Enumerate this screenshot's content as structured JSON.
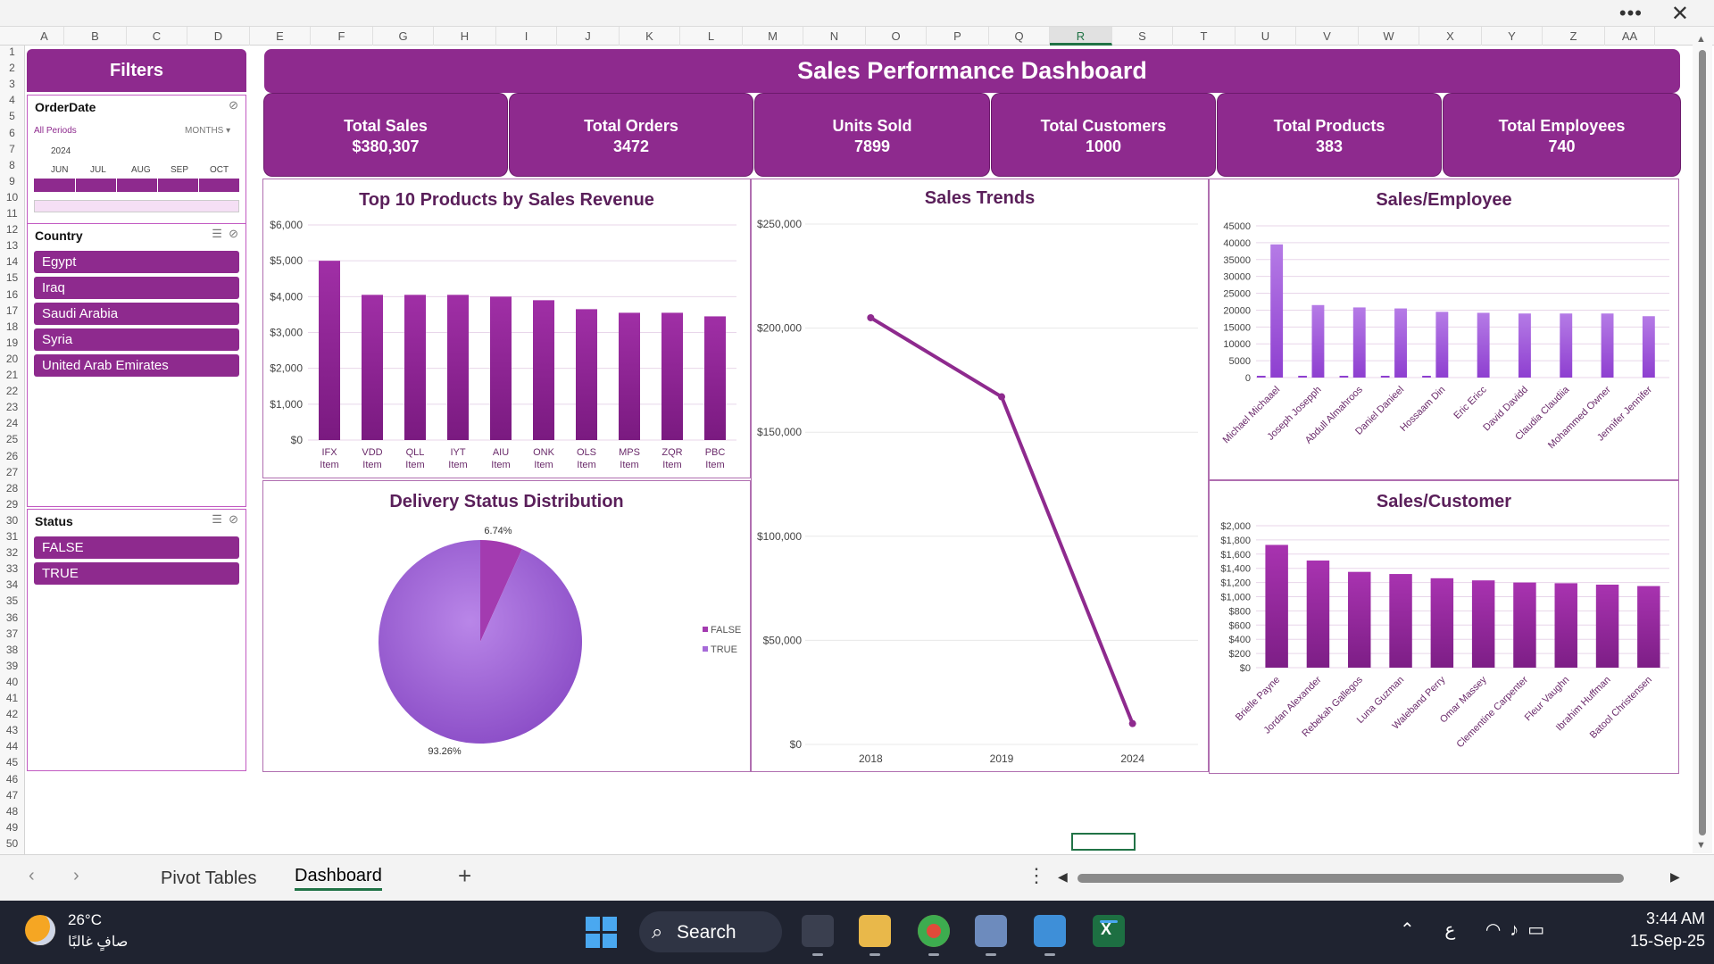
{
  "window": {
    "more_label": "•••",
    "close_label": "✕"
  },
  "columns": [
    "A",
    "B",
    "C",
    "D",
    "E",
    "F",
    "G",
    "H",
    "I",
    "J",
    "K",
    "L",
    "M",
    "N",
    "O",
    "P",
    "Q",
    "R",
    "S",
    "T",
    "U",
    "V",
    "W",
    "X",
    "Y",
    "Z",
    "AA"
  ],
  "selected_column": "R",
  "rows": [
    "1",
    "2",
    "3",
    "4",
    "5",
    "6",
    "7",
    "8",
    "9",
    "10",
    "11",
    "12",
    "13",
    "14",
    "15",
    "16",
    "17",
    "18",
    "19",
    "20",
    "21",
    "22",
    "23",
    "24",
    "25",
    "26",
    "27",
    "28",
    "29",
    "30",
    "31",
    "32",
    "33",
    "34",
    "35",
    "36",
    "37",
    "38",
    "39",
    "40",
    "41",
    "42",
    "43",
    "44",
    "45",
    "46",
    "47",
    "48",
    "49",
    "50"
  ],
  "filters": {
    "title": "Filters",
    "orderdate": {
      "title": "OrderDate",
      "all_periods": "All Periods",
      "months": "MONTHS ▾",
      "year": "2024",
      "month_labels": [
        "JUN",
        "JUL",
        "AUG",
        "SEP",
        "OCT"
      ]
    },
    "country": {
      "title": "Country",
      "items": [
        "Egypt",
        "Iraq",
        "Saudi Arabia",
        "Syria",
        "United Arab Emirates"
      ]
    },
    "status": {
      "title": "Status",
      "items": [
        "FALSE",
        "TRUE"
      ]
    }
  },
  "dashboard": {
    "title": "Sales Performance Dashboard",
    "kpis": [
      {
        "label": "Total Sales",
        "value": "$380,307"
      },
      {
        "label": "Total Orders",
        "value": "3472"
      },
      {
        "label": "Units Sold",
        "value": "7899"
      },
      {
        "label": "Total Customers",
        "value": "1000"
      },
      {
        "label": "Total Products",
        "value": "383"
      },
      {
        "label": "Total Employees",
        "value": "740"
      }
    ]
  },
  "colors": {
    "accent": "#8e2a8e",
    "bar": "#9b2fa0",
    "bar_light": "#a85ad6",
    "pie_true": "#a66ad8",
    "pie_false": "#a33bb0"
  },
  "chart_data": [
    {
      "id": "top10",
      "type": "bar",
      "title": "Top 10 Products by Sales Revenue",
      "categories": [
        "IFX Item",
        "VDD Item",
        "QLL Item",
        "IYT Item",
        "AIU Item",
        "ONK Item",
        "OLS Item",
        "MPS Item",
        "ZQR Item",
        "PBC Item"
      ],
      "values": [
        5000,
        4050,
        4050,
        4050,
        4000,
        3900,
        3650,
        3550,
        3550,
        3450
      ],
      "ylim": [
        0,
        6000
      ],
      "yticks": [
        "$0",
        "$1,000",
        "$2,000",
        "$3,000",
        "$4,000",
        "$5,000",
        "$6,000"
      ],
      "grid": true
    },
    {
      "id": "trends",
      "type": "line",
      "title": "Sales Trends",
      "x": [
        "2018",
        "2019",
        "2024"
      ],
      "values": [
        205000,
        167000,
        10000
      ],
      "ylim": [
        0,
        250000
      ],
      "yticks": [
        "$0",
        "$50,000",
        "$100,000",
        "$150,000",
        "$200,000",
        "$250,000"
      ],
      "grid": true
    },
    {
      "id": "employee",
      "type": "bar",
      "title": "Sales/Employee",
      "categories": [
        "Michael Michaael",
        "Joseph Josepph",
        "Abdull Almahroos",
        "Daniel Danieel",
        "Hossaam Din",
        "Eric Ericc",
        "David Davidd",
        "Claudia Claudiia",
        "Mohammed Owner",
        "Jennifer Jennifer"
      ],
      "values": [
        39500,
        21500,
        20800,
        20500,
        19500,
        19200,
        19000,
        19000,
        19000,
        18200
      ],
      "ylim": [
        0,
        45000
      ],
      "yticks": [
        "0",
        "5000",
        "10000",
        "15000",
        "20000",
        "25000",
        "30000",
        "35000",
        "40000",
        "45000"
      ],
      "grid": true
    },
    {
      "id": "customer",
      "type": "bar",
      "title": "Sales/Customer",
      "categories": [
        "Brielle Payne",
        "Jordan Alexander",
        "Rebekah Gallegos",
        "Luna Guzman",
        "Waleband Perry",
        "Omar Massey",
        "Clementine Carpenter",
        "Fleur Vaughn",
        "Ibrahim Huffman",
        "Batool Christensen"
      ],
      "values": [
        1730,
        1510,
        1350,
        1320,
        1260,
        1230,
        1200,
        1190,
        1170,
        1150
      ],
      "ylim": [
        0,
        2000
      ],
      "yticks": [
        "$0",
        "$200",
        "$400",
        "$600",
        "$800",
        "$1,000",
        "$1,200",
        "$1,400",
        "$1,600",
        "$1,800",
        "$2,000"
      ],
      "grid": true
    },
    {
      "id": "delivery",
      "type": "pie",
      "title": "Delivery Status Distribution",
      "labels": [
        "FALSE",
        "TRUE"
      ],
      "values": [
        6.74,
        93.26
      ],
      "data_labels": [
        "6.74%",
        "93.26%"
      ],
      "legend": "right"
    }
  ],
  "sheet_tabs": {
    "tabs": [
      "Pivot Tables",
      "Dashboard"
    ],
    "active": "Dashboard",
    "add_label": "+",
    "more_label": "⋮"
  },
  "taskbar": {
    "temperature": "26°C",
    "weather_desc": "صافٍ غالبًا",
    "search_label": "Search",
    "tray_lang": "ع",
    "time": "3:44 AM",
    "date": "15-Sep-25"
  }
}
